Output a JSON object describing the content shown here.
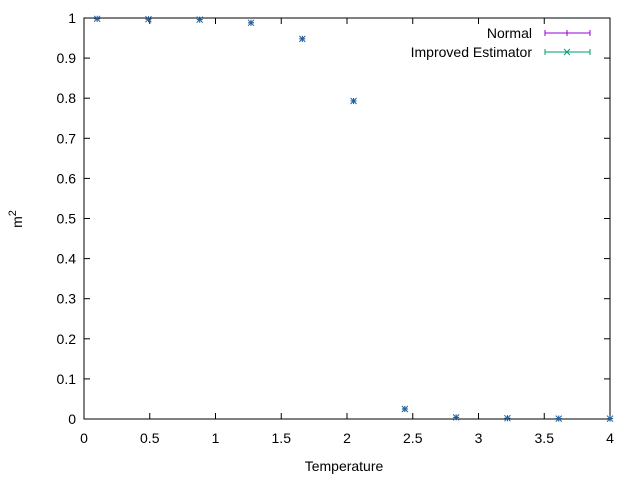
{
  "chart_data": {
    "type": "scatter",
    "xlabel": "Temperature",
    "ylabel": "m",
    "ylabel_superscript": "2",
    "xlim": [
      0,
      4
    ],
    "ylim": [
      0,
      1
    ],
    "xticks": [
      "0",
      "0.5",
      "1",
      "1.5",
      "2",
      "2.5",
      "3",
      "3.5",
      "4"
    ],
    "yticks": [
      "0",
      "0.1",
      "0.2",
      "0.3",
      "0.4",
      "0.5",
      "0.6",
      "0.7",
      "0.8",
      "0.9",
      "1"
    ],
    "grid": false,
    "legend_position": "top-right",
    "series": [
      {
        "name": "Normal",
        "color": "#9400d3",
        "marker": "plus",
        "x": [
          0.1,
          0.49,
          0.88,
          1.27,
          1.66,
          2.05,
          2.44,
          2.83,
          3.22,
          3.61,
          4.0
        ],
        "y": [
          0.998,
          0.997,
          0.996,
          0.988,
          0.948,
          0.793,
          0.025,
          0.004,
          0.002,
          0.001,
          0.001
        ]
      },
      {
        "name": "Improved Estimator",
        "color": "#009e73",
        "marker": "cross",
        "x": [
          0.1,
          0.49,
          0.88,
          1.27,
          1.66,
          2.05,
          2.44,
          2.83,
          3.22,
          3.61,
          4.0
        ],
        "y": [
          0.998,
          0.997,
          0.996,
          0.988,
          0.948,
          0.793,
          0.025,
          0.004,
          0.002,
          0.001,
          0.001
        ]
      }
    ]
  }
}
